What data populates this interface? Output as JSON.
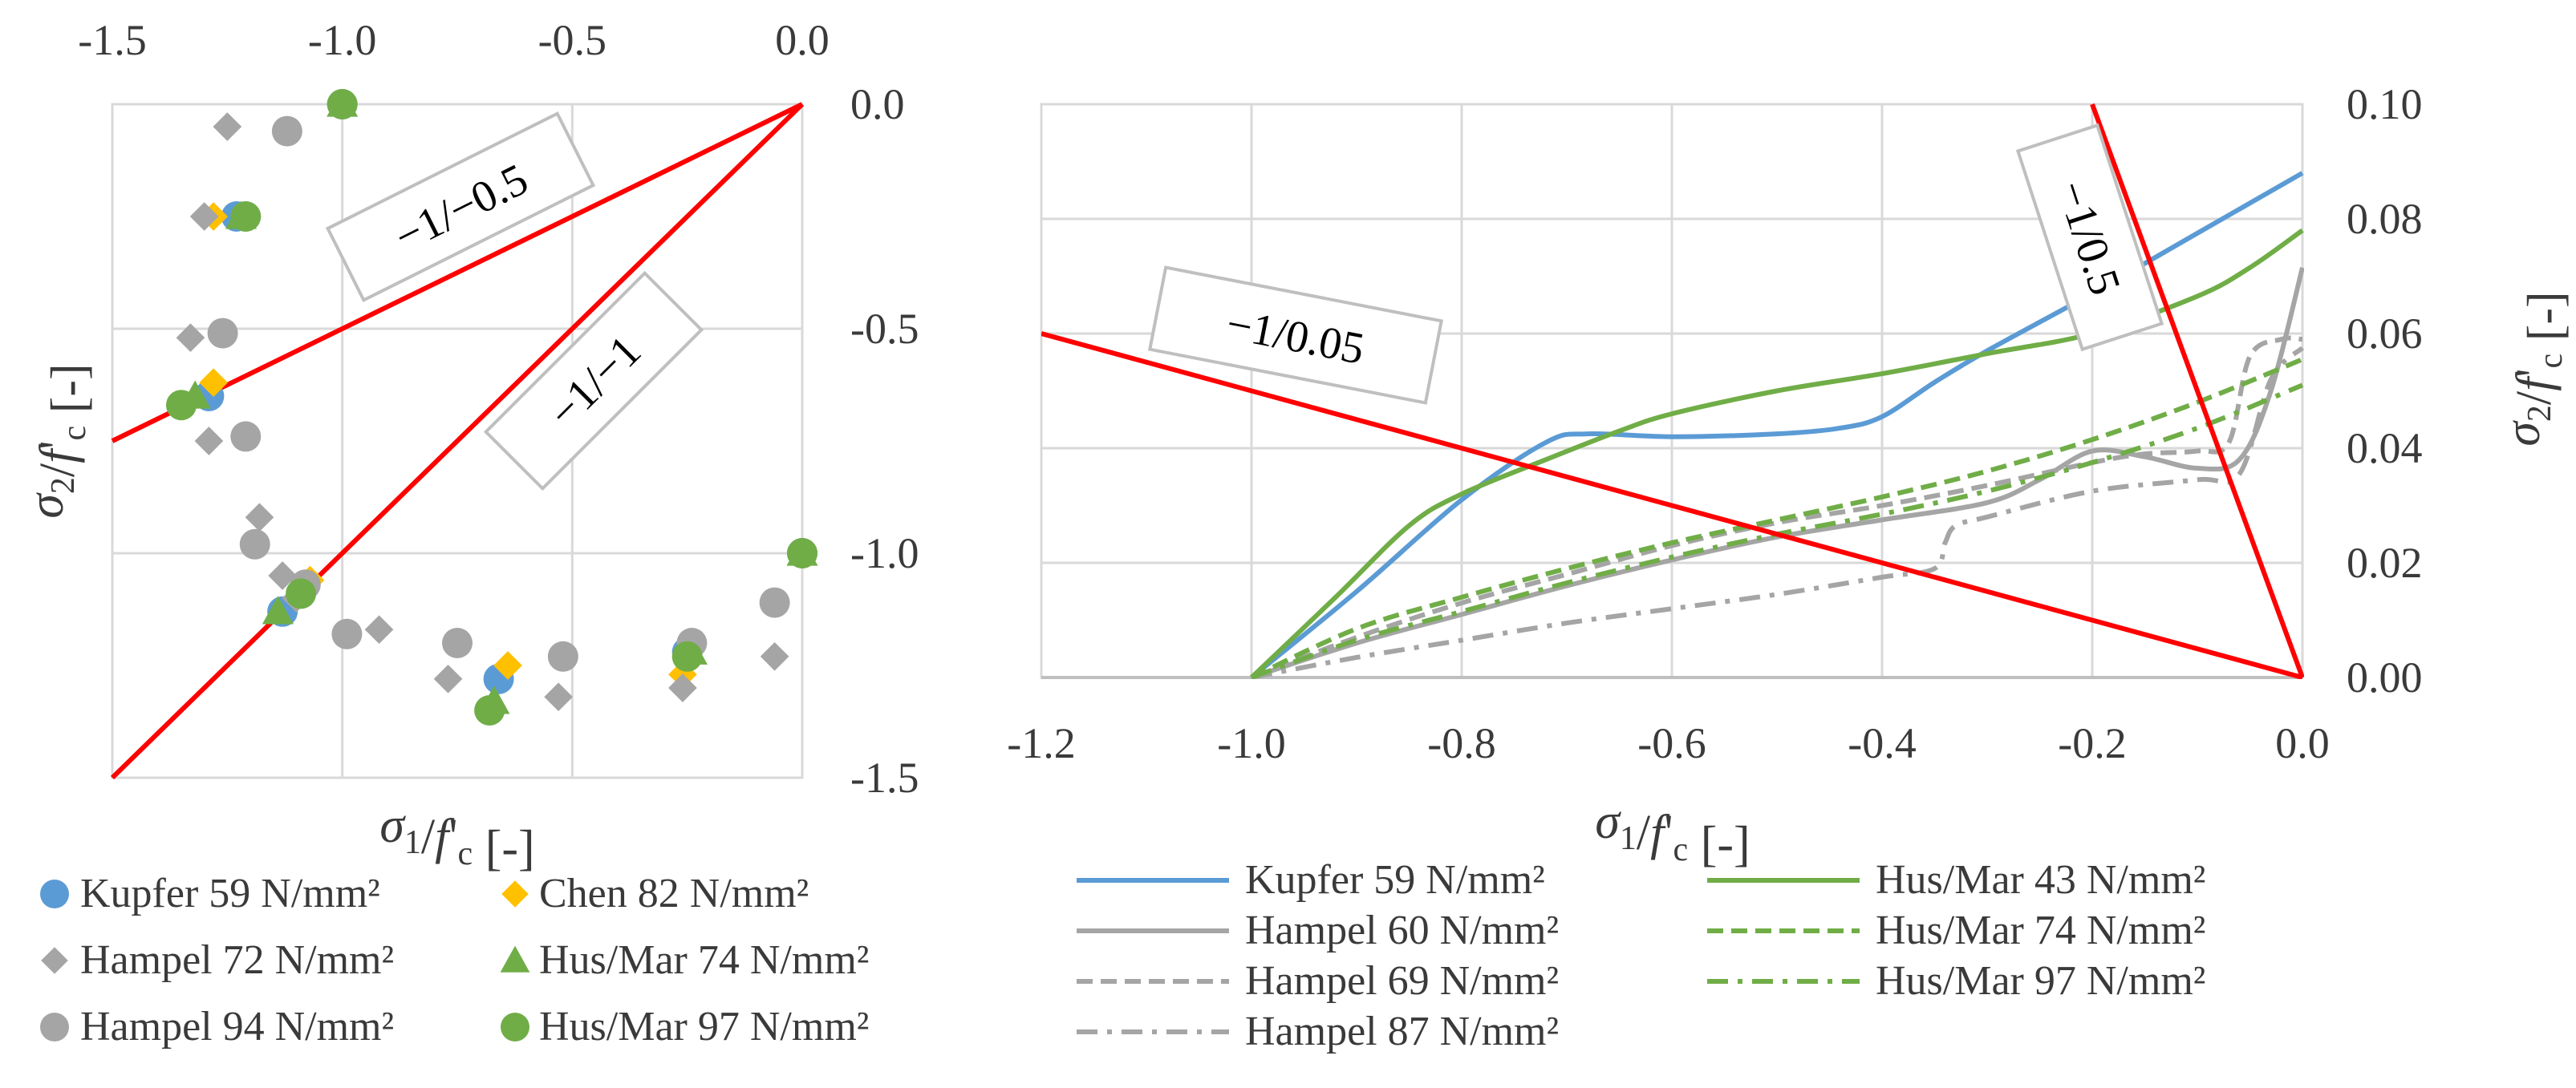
{
  "colors": {
    "kupfer": "#5b9bd5",
    "chen": "#ffc000",
    "hampel": "#a5a5a5",
    "husmar": "#70ad47",
    "limit": "#ff0000",
    "grid": "#d9d9d9",
    "text": "#3a3a3a"
  },
  "chart_data": [
    {
      "type": "scatter",
      "xlabel": "σ1/f'c [-]",
      "ylabel": "σ2/f'c [-]",
      "xlim": [
        -1.5,
        0.0
      ],
      "ylim": [
        -1.5,
        0.0
      ],
      "x_ticks": [
        "-1.5",
        "-1.0",
        "-0.5",
        "0.0"
      ],
      "y_ticks": [
        "0.0",
        "-0.5",
        "-1.0",
        "-1.5"
      ],
      "x_axis_position": "top",
      "y_axis_position": "right",
      "grid": true,
      "series": [
        {
          "name": "Kupfer 59 N/mm²",
          "marker": "circle",
          "color": "#5b9bd5",
          "points": [
            [
              -1.23,
              -0.25
            ],
            [
              -1.29,
              -0.65
            ],
            [
              -1.13,
              -1.13
            ],
            [
              -0.66,
              -1.28
            ],
            [
              -0.25,
              -1.22
            ],
            [
              -1.0,
              0.0
            ],
            [
              0.0,
              -1.0
            ]
          ]
        },
        {
          "name": "Chen 82 N/mm²",
          "marker": "diamond",
          "color": "#ffc000",
          "points": [
            [
              -1.28,
              -0.25
            ],
            [
              -1.28,
              -0.62
            ],
            [
              -1.07,
              -1.06
            ],
            [
              -0.64,
              -1.25
            ],
            [
              -0.26,
              -1.27
            ],
            [
              -1.0,
              0.0
            ],
            [
              0.0,
              -1.0
            ]
          ]
        },
        {
          "name": "Hampel 72 N/mm²",
          "marker": "diamond",
          "color": "#a5a5a5",
          "points": [
            [
              -1.25,
              -0.05
            ],
            [
              -1.3,
              -0.25
            ],
            [
              -1.33,
              -0.52
            ],
            [
              -1.29,
              -0.75
            ],
            [
              -1.18,
              -0.92
            ],
            [
              -1.13,
              -1.05
            ],
            [
              -1.1,
              -1.1
            ],
            [
              -0.92,
              -1.17
            ],
            [
              -0.77,
              -1.28
            ],
            [
              -0.53,
              -1.32
            ],
            [
              -0.26,
              -1.3
            ],
            [
              -0.06,
              -1.23
            ],
            [
              -1.0,
              0.0
            ],
            [
              0.0,
              -1.0
            ]
          ]
        },
        {
          "name": "Hus/Mar 74 N/mm²",
          "marker": "triangle",
          "color": "#70ad47",
          "points": [
            [
              -1.22,
              -0.25
            ],
            [
              -1.32,
              -0.65
            ],
            [
              -1.14,
              -1.13
            ],
            [
              -0.67,
              -1.33
            ],
            [
              -0.24,
              -1.22
            ],
            [
              -1.0,
              0.0
            ],
            [
              0.0,
              -1.0
            ]
          ]
        },
        {
          "name": "Hampel 94 N/mm²",
          "marker": "circle",
          "color": "#a5a5a5",
          "points": [
            [
              -1.12,
              -0.06
            ],
            [
              -1.21,
              -0.25
            ],
            [
              -1.26,
              -0.51
            ],
            [
              -1.21,
              -0.74
            ],
            [
              -1.19,
              -0.98
            ],
            [
              -1.08,
              -1.07
            ],
            [
              -0.99,
              -1.18
            ],
            [
              -0.75,
              -1.2
            ],
            [
              -0.52,
              -1.23
            ],
            [
              -0.24,
              -1.2
            ],
            [
              -0.06,
              -1.11
            ],
            [
              -1.0,
              0.0
            ],
            [
              0.0,
              -1.0
            ]
          ]
        },
        {
          "name": "Hus/Mar 97 N/mm²",
          "marker": "circle",
          "color": "#70ad47",
          "points": [
            [
              -1.0,
              0.0
            ],
            [
              -1.21,
              -0.25
            ],
            [
              -1.35,
              -0.67
            ],
            [
              -1.09,
              -1.09
            ],
            [
              -0.68,
              -1.35
            ],
            [
              -0.25,
              -1.23
            ],
            [
              0.0,
              -1.0
            ]
          ]
        }
      ],
      "reference_lines": [
        {
          "label": "−1/−0.5",
          "color": "#ff0000",
          "points": [
            [
              -1.5,
              -0.75
            ],
            [
              0.0,
              0.0
            ]
          ]
        },
        {
          "label": "−1/−1",
          "color": "#ff0000",
          "points": [
            [
              -1.5,
              -1.5
            ],
            [
              0.0,
              0.0
            ]
          ]
        }
      ]
    },
    {
      "type": "line",
      "xlabel": "σ1/f'c [-]",
      "ylabel": "σ2/f'c [-]",
      "xlim": [
        -1.2,
        0.0
      ],
      "ylim": [
        0.0,
        0.1
      ],
      "x_ticks": [
        "-1.2",
        "-1.0",
        "-0.8",
        "-0.6",
        "-0.4",
        "-0.2",
        "0.0"
      ],
      "y_ticks": [
        "0.10",
        "0.08",
        "0.06",
        "0.04",
        "0.02",
        "0.00"
      ],
      "y_axis_position": "right",
      "grid": true,
      "series": [
        {
          "name": "Kupfer 59 N/mm²",
          "color": "#5b9bd5",
          "dash": "solid",
          "x": [
            -1.0,
            -0.9,
            -0.8,
            -0.72,
            -0.68,
            -0.6,
            -0.5,
            -0.44,
            -0.4,
            -0.35,
            -0.3,
            -0.2,
            -0.1,
            0.0
          ],
          "y": [
            0.0,
            0.015,
            0.031,
            0.041,
            0.0425,
            0.042,
            0.0425,
            0.0435,
            0.0455,
            0.0515,
            0.057,
            0.067,
            0.0775,
            0.088
          ]
        },
        {
          "name": "Hampel 60 N/mm²",
          "color": "#a5a5a5",
          "dash": "solid",
          "x": [
            -1.0,
            -0.9,
            -0.8,
            -0.7,
            -0.6,
            -0.5,
            -0.4,
            -0.3,
            -0.25,
            -0.2,
            -0.15,
            -0.1,
            -0.06,
            -0.03,
            0.0
          ],
          "y": [
            0.0,
            0.006,
            0.011,
            0.016,
            0.0205,
            0.0245,
            0.0275,
            0.0305,
            0.0345,
            0.0395,
            0.0385,
            0.0365,
            0.038,
            0.05,
            0.0715
          ]
        },
        {
          "name": "Hampel 69 N/mm²",
          "color": "#a5a5a5",
          "dash": "dash",
          "x": [
            -1.0,
            -0.9,
            -0.8,
            -0.7,
            -0.6,
            -0.5,
            -0.4,
            -0.3,
            -0.2,
            -0.15,
            -0.1,
            -0.07,
            -0.05,
            -0.02,
            0.0
          ],
          "y": [
            0.0,
            0.007,
            0.013,
            0.018,
            0.023,
            0.027,
            0.03,
            0.0335,
            0.0375,
            0.039,
            0.0395,
            0.041,
            0.056,
            0.059,
            0.059
          ]
        },
        {
          "name": "Hampel 87 N/mm²",
          "color": "#a5a5a5",
          "dash": "dashdot",
          "x": [
            -1.0,
            -0.9,
            -0.8,
            -0.7,
            -0.6,
            -0.5,
            -0.4,
            -0.35,
            -0.34,
            -0.33,
            -0.3,
            -0.2,
            -0.1,
            -0.06,
            -0.03,
            0.0
          ],
          "y": [
            0.0,
            0.0035,
            0.0065,
            0.0095,
            0.012,
            0.0145,
            0.0175,
            0.019,
            0.0235,
            0.0265,
            0.028,
            0.0325,
            0.0345,
            0.0355,
            0.052,
            0.0575
          ]
        },
        {
          "name": "Hus/Mar 43 N/mm²",
          "color": "#70ad47",
          "dash": "solid",
          "x": [
            -1.0,
            -0.92,
            -0.85,
            -0.8,
            -0.72,
            -0.65,
            -0.6,
            -0.5,
            -0.4,
            -0.3,
            -0.2,
            -0.1,
            -0.05,
            0.0
          ],
          "y": [
            0.0,
            0.014,
            0.0265,
            0.032,
            0.038,
            0.043,
            0.046,
            0.05,
            0.053,
            0.0565,
            0.06,
            0.0665,
            0.0715,
            0.078
          ]
        },
        {
          "name": "Hus/Mar 74 N/mm²",
          "color": "#70ad47",
          "dash": "dash",
          "x": [
            -1.0,
            -0.9,
            -0.8,
            -0.7,
            -0.6,
            -0.5,
            -0.4,
            -0.3,
            -0.2,
            -0.1,
            0.0
          ],
          "y": [
            0.0,
            0.0085,
            0.014,
            0.019,
            0.0235,
            0.0275,
            0.0315,
            0.036,
            0.0415,
            0.048,
            0.0555
          ]
        },
        {
          "name": "Hus/Mar 97 N/mm²",
          "color": "#70ad47",
          "dash": "dashdot",
          "x": [
            -1.0,
            -0.9,
            -0.8,
            -0.7,
            -0.6,
            -0.5,
            -0.4,
            -0.3,
            -0.2,
            -0.1,
            0.0
          ],
          "y": [
            0.0,
            0.0065,
            0.0115,
            0.0165,
            0.021,
            0.025,
            0.0285,
            0.0325,
            0.0375,
            0.0435,
            0.051
          ]
        }
      ],
      "reference_lines": [
        {
          "label": "−1/0.05",
          "color": "#ff0000",
          "points": [
            [
              -1.2,
              0.06
            ],
            [
              0.0,
              0.0
            ]
          ]
        },
        {
          "label": "−1/0.5",
          "color": "#ff0000",
          "points": [
            [
              -0.2,
              0.1
            ],
            [
              0.0,
              0.0
            ]
          ]
        }
      ]
    }
  ],
  "left_legend": [
    {
      "label": "Kupfer 59 N/mm²",
      "marker": "circle",
      "color": "#5b9bd5"
    },
    {
      "label": "Chen 82 N/mm²",
      "marker": "diamond",
      "color": "#ffc000"
    },
    {
      "label": "Hampel 72 N/mm²",
      "marker": "diamond",
      "color": "#a5a5a5"
    },
    {
      "label": "Hus/Mar 74 N/mm²",
      "marker": "triangle",
      "color": "#70ad47"
    },
    {
      "label": "Hampel 94 N/mm²",
      "marker": "circle",
      "color": "#a5a5a5"
    },
    {
      "label": "Hus/Mar 97 N/mm²",
      "marker": "circle",
      "color": "#70ad47"
    }
  ],
  "right_legend": [
    {
      "label": "Kupfer 59 N/mm²",
      "color": "#5b9bd5",
      "dash": "solid"
    },
    {
      "label": "Hus/Mar 43 N/mm²",
      "color": "#70ad47",
      "dash": "solid"
    },
    {
      "label": "Hampel 60 N/mm²",
      "color": "#a5a5a5",
      "dash": "solid"
    },
    {
      "label": "Hus/Mar 74 N/mm²",
      "color": "#70ad47",
      "dash": "dash"
    },
    {
      "label": "Hampel 69 N/mm²",
      "color": "#a5a5a5",
      "dash": "dash"
    },
    {
      "label": "Hus/Mar 97 N/mm²",
      "color": "#70ad47",
      "dash": "dashdot"
    },
    {
      "label": "Hampel 87 N/mm²",
      "color": "#a5a5a5",
      "dash": "dashdot"
    }
  ]
}
